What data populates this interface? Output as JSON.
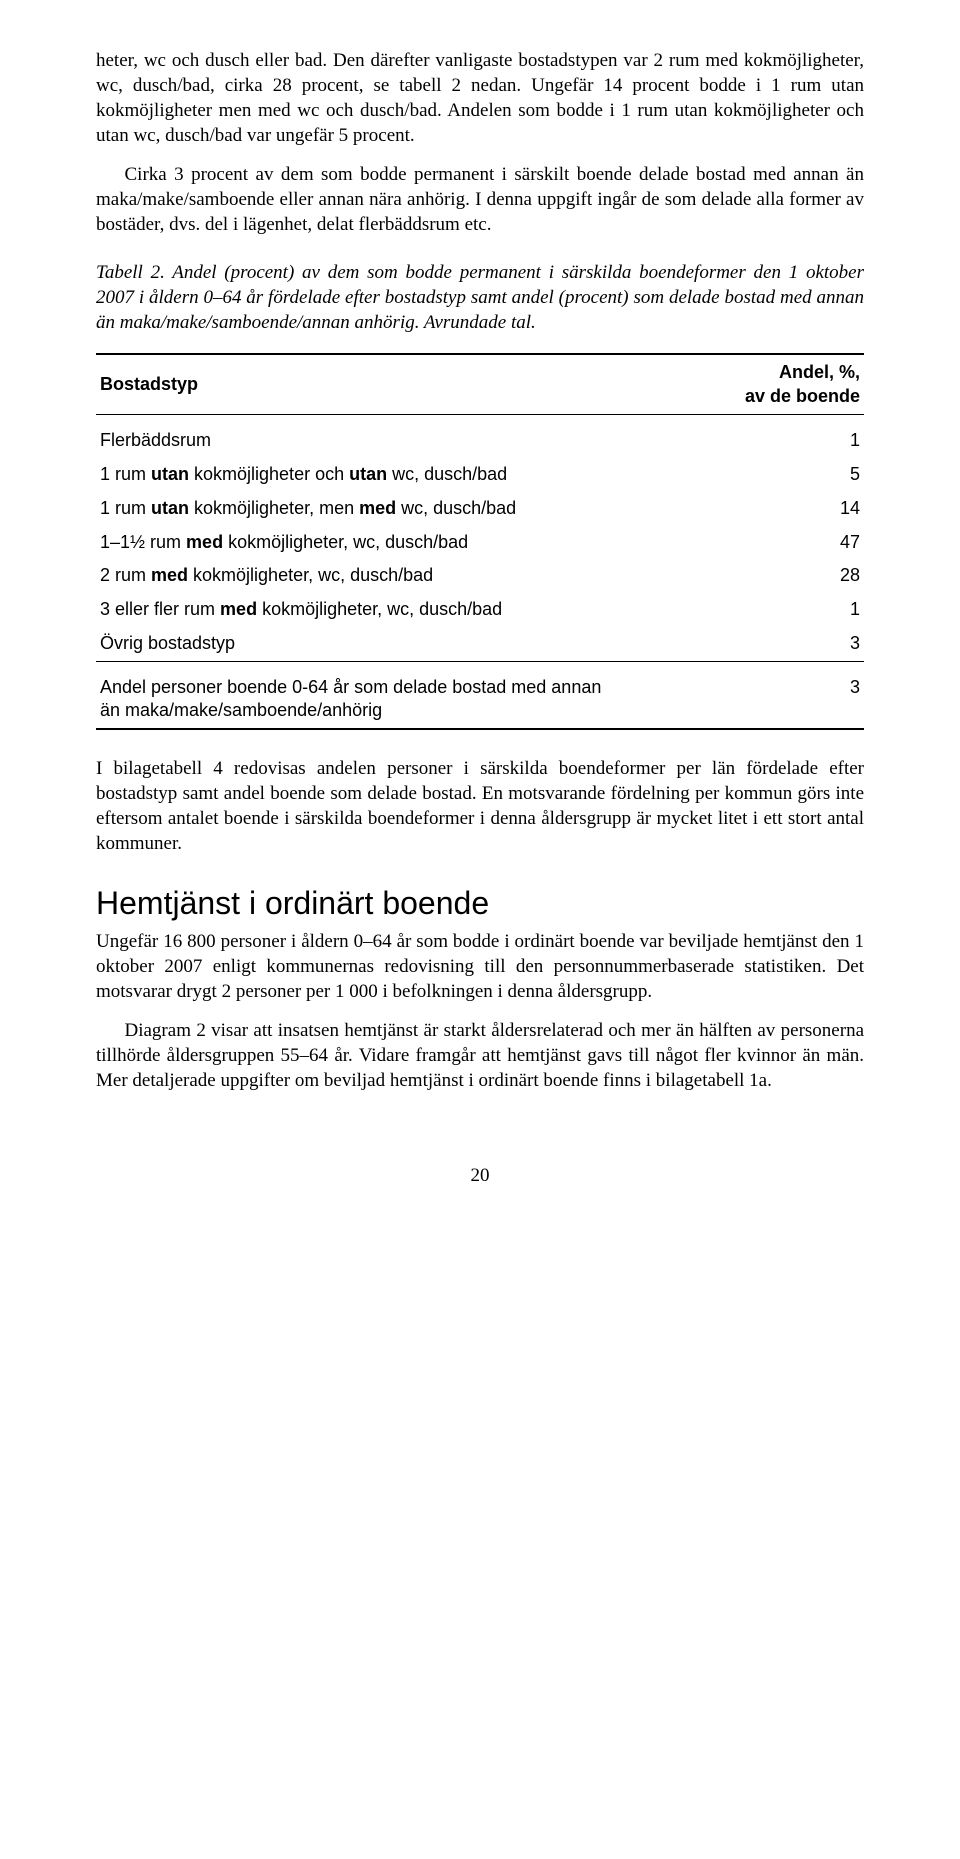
{
  "para1": "heter, wc och dusch eller bad. Den därefter vanligaste bostadstypen var 2 rum med kokmöjligheter, wc, dusch/bad, cirka 28 procent, se tabell 2 nedan. Ungefär 14 procent bodde i 1 rum utan kokmöjligheter men med wc och dusch/bad. Andelen som bodde i 1 rum utan kokmöjligheter och utan wc, dusch/bad var ungefär 5 procent.",
  "para2": "Cirka 3 procent av dem som bodde permanent i särskilt boende delade bostad med annan än maka/make/samboende eller annan nära anhörig. I denna uppgift ingår de som delade alla former av bostäder, dvs. del i lägenhet, delat flerbäddsrum etc.",
  "caption": "Tabell 2. Andel (procent) av dem som bodde permanent i särskilda boendeformer den 1 oktober 2007 i åldern 0–64 år fördelade efter bostadstyp samt andel (procent) som delade bostad med annan än maka/make/samboende/annan anhörig. Avrundade tal.",
  "table": {
    "col1_header": "Bostadstyp",
    "col2_header_l1": "Andel, %,",
    "col2_header_l2": "av de boende",
    "rows": [
      {
        "label_parts": [
          "Flerbäddsrum"
        ],
        "val": "1"
      },
      {
        "label_parts": [
          "1 rum ",
          "utan",
          " kokmöjligheter och ",
          "utan",
          " wc, dusch/bad"
        ],
        "val": "5"
      },
      {
        "label_parts": [
          "1 rum ",
          "utan",
          " kokmöjligheter, men ",
          "med",
          " wc, dusch/bad"
        ],
        "val": "14"
      },
      {
        "label_parts": [
          "1–1½ rum ",
          "med",
          " kokmöjligheter, wc, dusch/bad"
        ],
        "val": "47"
      },
      {
        "label_parts": [
          "2 rum ",
          "med",
          " kokmöjligheter, wc, dusch/bad"
        ],
        "val": "28"
      },
      {
        "label_parts": [
          "3 eller fler rum ",
          "med",
          " kokmöjligheter, wc, dusch/bad"
        ],
        "val": "1"
      },
      {
        "label_parts": [
          "Övrig bostadstyp"
        ],
        "val": "3"
      }
    ],
    "footer_label_l1": "Andel personer boende 0-64 år som delade bostad med annan",
    "footer_label_l2": "än maka/make/samboende/anhörig",
    "footer_val": "3"
  },
  "para3": "I bilagetabell 4 redovisas andelen personer i särskilda boendeformer per län fördelade efter bostadstyp samt andel boende som delade bostad. En motsvarande fördelning per kommun görs inte eftersom antalet boende i särskilda boendeformer i denna åldersgrupp är mycket litet i ett stort antal kommuner.",
  "heading": "Hemtjänst i ordinärt boende",
  "para4": "Ungefär 16 800 personer i åldern 0–64 år som bodde i ordinärt boende var beviljade hemtjänst den 1 oktober 2007 enligt kommunernas redovisning till den personnummerbaserade statistiken. Det motsvarar drygt 2 personer per 1 000 i befolkningen i denna åldersgrupp.",
  "para5": "Diagram 2 visar att insatsen hemtjänst är starkt åldersrelaterad och mer än hälften av personerna tillhörde åldersgruppen 55–64 år. Vidare framgår att hemtjänst gavs till något fler kvinnor än män. Mer detaljerade uppgifter om beviljad hemtjänst i ordinärt boende finns i bilagetabell 1a.",
  "pagenum": "20"
}
